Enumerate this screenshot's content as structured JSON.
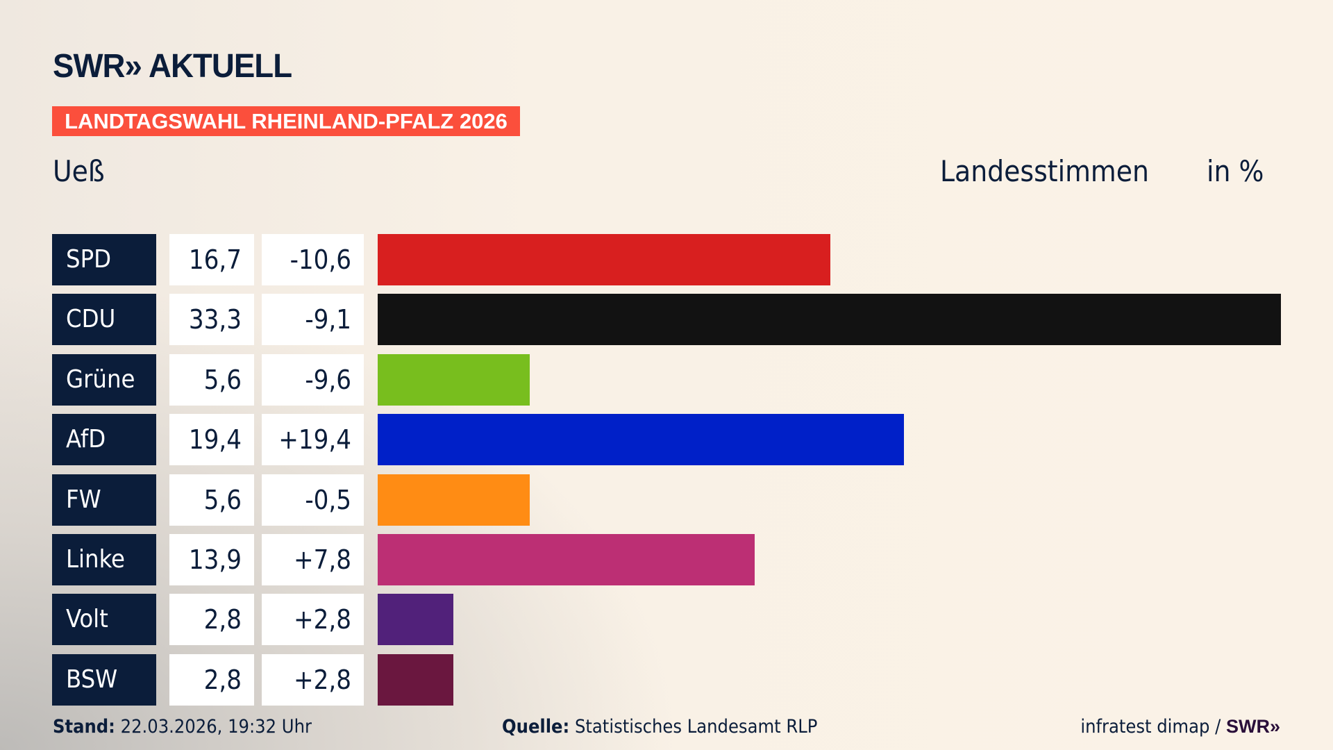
{
  "header": {
    "logo": "SWR» AKTUELL",
    "banner": "LANDTAGSWAHL RHEINLAND-PFALZ 2026",
    "location": "Ueß",
    "measure": "Landesstimmen",
    "unit": "in %"
  },
  "chart_data": {
    "type": "bar",
    "orientation": "horizontal",
    "xlim": [
      0,
      33.3
    ],
    "categories": [
      "SPD",
      "CDU",
      "Grüne",
      "AfD",
      "FW",
      "Linke",
      "Volt",
      "BSW"
    ],
    "values": [
      16.7,
      33.3,
      5.6,
      19.4,
      5.6,
      13.9,
      2.8,
      2.8
    ],
    "value_labels": [
      "16,7",
      "33,3",
      "5,6",
      "19,4",
      "5,6",
      "13,9",
      "2,8",
      "2,8"
    ],
    "diff_labels": [
      "-10,6",
      "-9,1",
      "-9,6",
      "+19,4",
      "-0,5",
      "+7,8",
      "+2,8",
      "+2,8"
    ],
    "colors": [
      "#d81f1f",
      "#121212",
      "#78be1e",
      "#0020c8",
      "#ff8c14",
      "#bc2f74",
      "#51217a",
      "#6a173f"
    ]
  },
  "footer": {
    "stand_label": "Stand:",
    "stand_value": "22.03.2026, 19:32 Uhr",
    "source_label": "Quelle:",
    "source_value": "Statistisches Landesamt RLP",
    "credit": "infratest dimap / ",
    "credit_logo": "SWR»"
  }
}
